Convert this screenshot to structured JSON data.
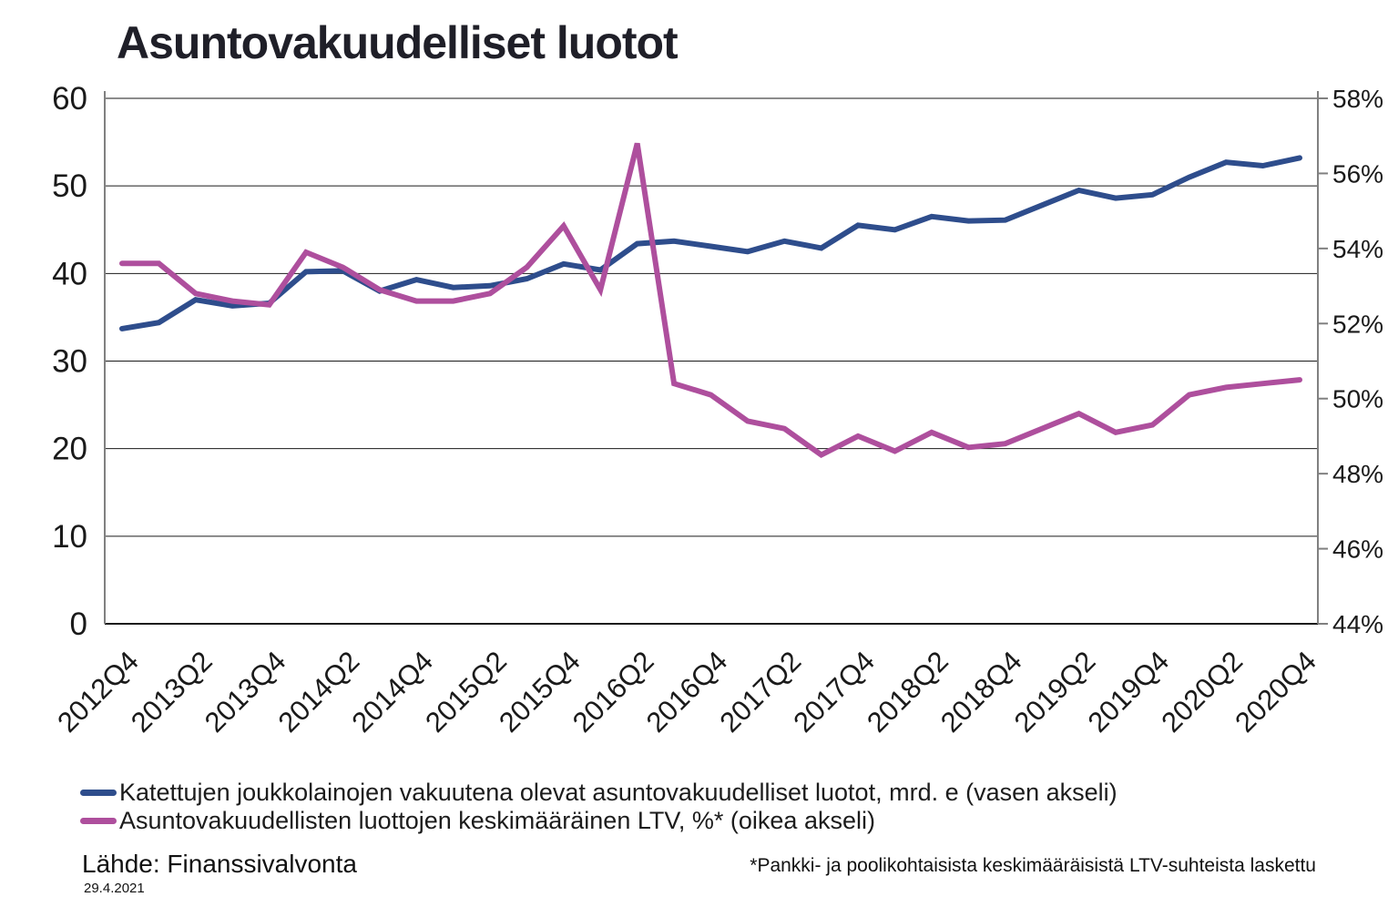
{
  "title": "Asuntovakuudelliset luotot",
  "source": {
    "label": "Lähde: Finanssivalvonta",
    "date": "29.4.2021"
  },
  "footnote": "*Pankki- ja poolikohtaisista keskimääräisistä LTV-suhteista laskettu",
  "colors": {
    "loans": "#2E4D8C",
    "ltv": "#AE4F9D",
    "grid": "#1a1a1a",
    "axis": "#808080"
  },
  "legend": [
    {
      "label": "Katettujen joukkolainojen vakuutena olevat asuntovakuudelliset luotot, mrd. e (vasen akseli)",
      "color": "#2E4D8C"
    },
    {
      "label": "Asuntovakuudellisten luottojen keskimääräinen LTV, %* (oikea akseli)",
      "color": "#AE4F9D"
    }
  ],
  "chart_data": {
    "type": "line",
    "title": "Asuntovakuudelliset luotot",
    "grid": "horizontal",
    "legend_position": "bottom-left",
    "x_tick_every": 2,
    "x": [
      "2012Q4",
      "2013Q1",
      "2013Q2",
      "2013Q3",
      "2013Q4",
      "2014Q1",
      "2014Q2",
      "2014Q3",
      "2014Q4",
      "2015Q1",
      "2015Q2",
      "2015Q3",
      "2015Q4",
      "2016Q1",
      "2016Q2",
      "2016Q3",
      "2016Q4",
      "2017Q1",
      "2017Q2",
      "2017Q3",
      "2017Q4",
      "2018Q1",
      "2018Q2",
      "2018Q3",
      "2018Q4",
      "2019Q1",
      "2019Q2",
      "2019Q3",
      "2019Q4",
      "2020Q1",
      "2020Q2",
      "2020Q3",
      "2020Q4"
    ],
    "left_axis": {
      "min": 0,
      "max": 60,
      "step": 10,
      "tick_labels": [
        "0",
        "10",
        "20",
        "30",
        "40",
        "50",
        "60"
      ]
    },
    "right_axis": {
      "min": 44,
      "max": 58,
      "step": 2,
      "tick_labels": [
        "44%",
        "46%",
        "48%",
        "50%",
        "52%",
        "54%",
        "56%",
        "58%"
      ]
    },
    "series": [
      {
        "name": "Katettujen joukkolainojen vakuutena olevat asuntovakuudelliset luotot, mrd. e (vasen akseli)",
        "axis": "left",
        "color": "#2E4D8C",
        "values": [
          33.7,
          34.4,
          37.0,
          36.3,
          36.6,
          40.2,
          40.3,
          38.0,
          39.3,
          38.4,
          38.6,
          39.4,
          41.1,
          40.4,
          43.4,
          43.7,
          43.1,
          42.5,
          43.7,
          42.9,
          45.5,
          45.0,
          46.5,
          46.0,
          46.1,
          47.8,
          49.5,
          48.6,
          49.0,
          51.0,
          52.7,
          52.3,
          53.2
        ]
      },
      {
        "name": "Asuntovakuudellisten luottojen keskimääräinen LTV, %* (oikea akseli)",
        "axis": "right",
        "color": "#AE4F9D",
        "values": [
          53.6,
          53.6,
          52.8,
          52.6,
          52.5,
          53.9,
          53.5,
          52.9,
          52.6,
          52.6,
          52.8,
          53.5,
          54.6,
          52.9,
          56.8,
          50.4,
          50.1,
          49.4,
          49.2,
          48.5,
          49.0,
          48.6,
          49.1,
          48.7,
          48.8,
          49.2,
          49.6,
          49.1,
          49.3,
          50.1,
          50.3,
          50.4,
          50.5
        ]
      }
    ]
  }
}
